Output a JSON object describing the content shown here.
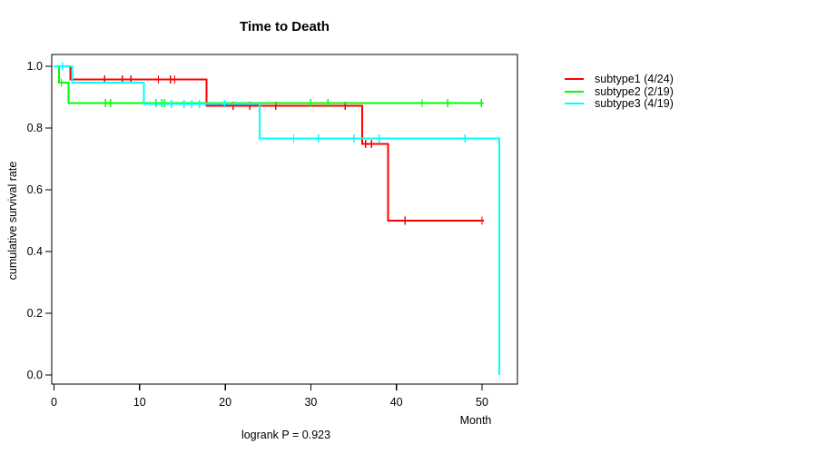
{
  "title": "Time to Death",
  "footer": "logrank P = 0.923",
  "axes": {
    "x_label": "Month",
    "y_label": "cumulative survival rate",
    "x_tick_labels": [
      "0",
      "10",
      "20",
      "30",
      "40",
      "50"
    ],
    "y_tick_labels": [
      "0.0",
      "0.2",
      "0.4",
      "0.6",
      "0.8",
      "1.0"
    ]
  },
  "legend": [
    {
      "label": "subtype1 (4/24)",
      "color": "#ff0000"
    },
    {
      "label": "subtype2 (2/19)",
      "color": "#00ff00"
    },
    {
      "label": "subtype3 (4/19)",
      "color": "#00ffff"
    }
  ],
  "chart_data": {
    "type": "line",
    "variant": "kaplan-meier-step",
    "title": "Time to Death",
    "xlabel": "Month",
    "ylabel": "cumulative survival rate",
    "annotation": "logrank P = 0.923",
    "xlim": [
      0,
      54
    ],
    "ylim": [
      0,
      1
    ],
    "x_ticks": [
      0,
      10,
      20,
      30,
      40,
      50
    ],
    "y_ticks": [
      0.0,
      0.2,
      0.4,
      0.6,
      0.8,
      1.0
    ],
    "grid": false,
    "legend_position": "right-outside",
    "series": [
      {
        "name": "subtype1",
        "label": "subtype1 (4/24)",
        "events": "4/24",
        "color": "#ff0000",
        "steps": [
          [
            0,
            1
          ],
          [
            1.9,
            1
          ],
          [
            1.9,
            0.958
          ],
          [
            17.8,
            0.958
          ],
          [
            17.8,
            0.872
          ],
          [
            36,
            0.872
          ],
          [
            36,
            0.748
          ],
          [
            39,
            0.748
          ],
          [
            39,
            0.5
          ],
          [
            50.2,
            0.5
          ]
        ],
        "censors": [
          [
            5.9,
            0.958
          ],
          [
            8,
            0.958
          ],
          [
            9,
            0.958
          ],
          [
            12.2,
            0.958
          ],
          [
            13.6,
            0.958
          ],
          [
            14.1,
            0.958
          ],
          [
            20.9,
            0.872
          ],
          [
            22.9,
            0.872
          ],
          [
            25.9,
            0.872
          ],
          [
            34,
            0.872
          ],
          [
            36.4,
            0.748
          ],
          [
            37.1,
            0.748
          ],
          [
            41,
            0.5
          ],
          [
            50,
            0.5
          ]
        ]
      },
      {
        "name": "subtype2",
        "label": "subtype2 (2/19)",
        "events": "2/19",
        "color": "#00ff00",
        "steps": [
          [
            0,
            1
          ],
          [
            0.6,
            1
          ],
          [
            0.6,
            0.947
          ],
          [
            1.7,
            0.947
          ],
          [
            1.7,
            0.881
          ],
          [
            50.2,
            0.881
          ]
        ],
        "censors": [
          [
            0.85,
            0.947
          ],
          [
            6,
            0.881
          ],
          [
            6.6,
            0.881
          ],
          [
            11.9,
            0.881
          ],
          [
            12.6,
            0.881
          ],
          [
            12.9,
            0.881
          ],
          [
            30,
            0.881
          ],
          [
            32,
            0.881
          ],
          [
            43,
            0.881
          ],
          [
            46,
            0.881
          ],
          [
            49.9,
            0.881
          ]
        ]
      },
      {
        "name": "subtype3",
        "label": "subtype3 (4/19)",
        "events": "4/19",
        "color": "#00ffff",
        "steps": [
          [
            0,
            1
          ],
          [
            2.1,
            1
          ],
          [
            2.1,
            0.947
          ],
          [
            10.5,
            0.947
          ],
          [
            10.5,
            0.878
          ],
          [
            24,
            0.878
          ],
          [
            24,
            0.766
          ],
          [
            52,
            0.766
          ],
          [
            52,
            0
          ]
        ],
        "censors": [
          [
            1,
            1
          ],
          [
            13.7,
            0.878
          ],
          [
            15.2,
            0.878
          ],
          [
            16.1,
            0.878
          ],
          [
            17,
            0.878
          ],
          [
            19.9,
            0.878
          ],
          [
            28,
            0.766
          ],
          [
            30.9,
            0.766
          ],
          [
            35,
            0.766
          ],
          [
            38,
            0.766
          ],
          [
            48,
            0.766
          ]
        ]
      }
    ]
  }
}
